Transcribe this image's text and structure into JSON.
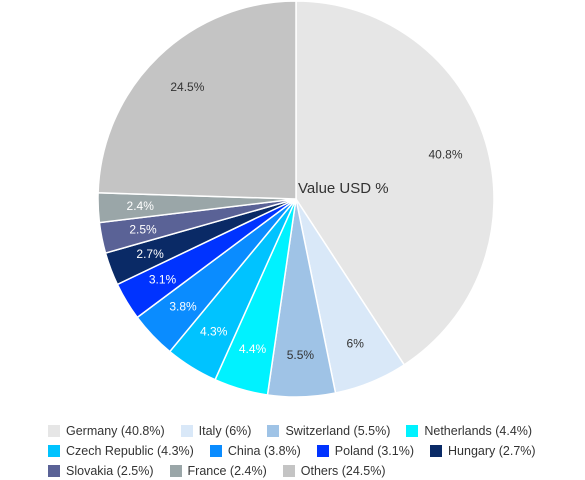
{
  "chart_data": {
    "type": "pie",
    "title": "Value USD %",
    "legend_position": "bottom",
    "slices": [
      {
        "name": "Germany (40.8%)",
        "label": "40.8%",
        "value": 40.8,
        "color": "#e6e6e6",
        "label_color": "#333333"
      },
      {
        "name": "Italy (6%)",
        "label": "6%",
        "value": 6.0,
        "color": "#d9e8f8",
        "label_color": "#333333"
      },
      {
        "name": "Switzerland (5.5%)",
        "label": "5.5%",
        "value": 5.5,
        "color": "#9fc3e6",
        "label_color": "#333333"
      },
      {
        "name": "Netherlands (4.4%)",
        "label": "4.4%",
        "value": 4.4,
        "color": "#00f2ff",
        "label_color": "#ffffff"
      },
      {
        "name": "Czech Republic (4.3%)",
        "label": "4.3%",
        "value": 4.3,
        "color": "#00c3ff",
        "label_color": "#ffffff"
      },
      {
        "name": "China (3.8%)",
        "label": "3.8%",
        "value": 3.8,
        "color": "#0a8cff",
        "label_color": "#ffffff"
      },
      {
        "name": "Poland (3.1%)",
        "label": "3.1%",
        "value": 3.1,
        "color": "#0033ff",
        "label_color": "#ffffff"
      },
      {
        "name": "Hungary (2.7%)",
        "label": "2.7%",
        "value": 2.7,
        "color": "#0a2a66",
        "label_color": "#ffffff"
      },
      {
        "name": "Slovakia (2.5%)",
        "label": "2.5%",
        "value": 2.5,
        "color": "#5a6296",
        "label_color": "#ffffff"
      },
      {
        "name": "France (2.4%)",
        "label": "2.4%",
        "value": 2.4,
        "color": "#9aa6a8",
        "label_color": "#ffffff"
      },
      {
        "name": "Others (24.5%)",
        "label": "24.5%",
        "value": 24.5,
        "color": "#c4c4c4",
        "label_color": "#333333"
      }
    ]
  }
}
